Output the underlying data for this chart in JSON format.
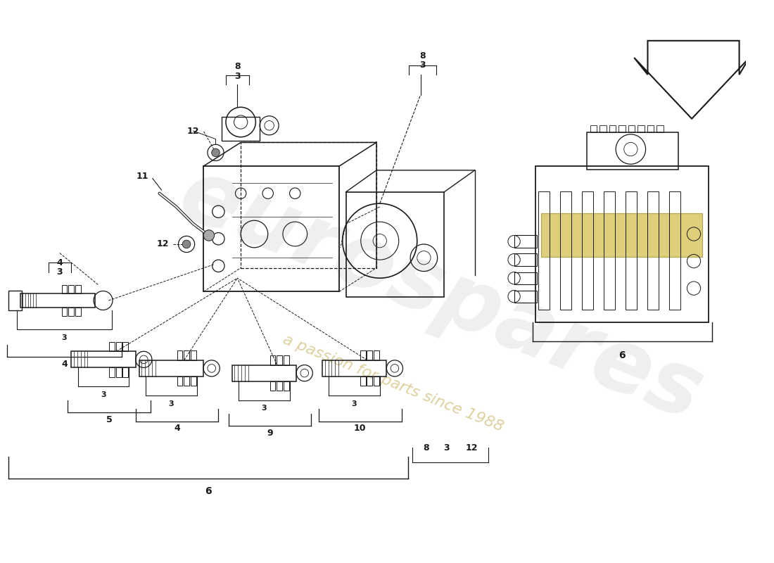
{
  "background_color": "#ffffff",
  "line_color": "#1a1a1a",
  "watermark1": "eurospares",
  "watermark2": "a passion for parts since 1988",
  "wm_color1": "#d5d5d5",
  "wm_color2": "#c8b060",
  "yellow_color": "#d4c050",
  "yellow_alpha": 0.75,
  "fig_width": 11.0,
  "fig_height": 8.0,
  "dpi": 100,
  "xlim": [
    0,
    11
  ],
  "ylim": [
    0,
    8
  ],
  "label_fontsize": 9,
  "bracket_lw": 0.9
}
